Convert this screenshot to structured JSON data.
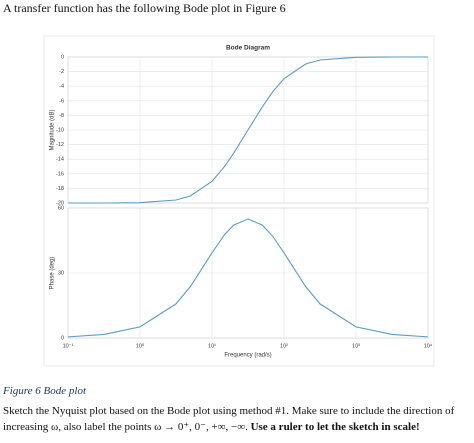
{
  "document": {
    "intro": "A transfer function has the following Bode plot in Figure 6",
    "caption": "Figure 6 Bode plot",
    "instruction": "Sketch the Nyquist plot based on the Bode plot using method #1. Make sure to include the direction of increasing ω, also label the points ω → 0⁺, 0⁻, +∞, −∞.",
    "instruction_bold": "Use a ruler to let the sketch in scale!"
  },
  "chart_data": [
    {
      "type": "line",
      "title": "Bode Diagram",
      "y_label": "Magnitude (dB)",
      "log_x": true,
      "grid": true,
      "x": [
        0.1,
        0.316,
        1,
        3.16,
        5,
        10,
        15,
        20,
        31.6,
        50,
        70,
        100,
        200,
        316,
        1000,
        3162,
        10000
      ],
      "series": [
        {
          "name": "Magnitude",
          "color": "#5b9bbf",
          "values": [
            -20,
            -20,
            -19.96,
            -19.59,
            -19.04,
            -17.03,
            -14.98,
            -13.18,
            -10,
            -6.82,
            -4.74,
            -2.97,
            -0.96,
            -0.41,
            -0.04,
            0,
            0
          ]
        }
      ],
      "xlim": [
        0.1,
        10000
      ],
      "ylim": [
        -20,
        0
      ],
      "yticks": [
        0,
        -2,
        -4,
        -6,
        -8,
        -10,
        -12,
        -14,
        -16,
        -18,
        -20
      ]
    },
    {
      "type": "line",
      "y_label": "Phase (deg)",
      "x_label": "Frequency (rad/s)",
      "log_x": true,
      "grid": true,
      "x": [
        0.1,
        0.316,
        1,
        3.16,
        5,
        10,
        15,
        20,
        31.6,
        50,
        70,
        100,
        200,
        316,
        1000,
        3162,
        10000
      ],
      "series": [
        {
          "name": "Phase",
          "color": "#5b9bbf",
          "values": [
            0.52,
            1.63,
            5.14,
            15.74,
            23.71,
            39.29,
            47.78,
            52.12,
            54.9,
            52.12,
            46.88,
            39.29,
            23.71,
            15.74,
            5.14,
            1.63,
            0.52
          ]
        }
      ],
      "xlim": [
        0.1,
        10000
      ],
      "ylim": [
        0,
        60
      ],
      "yticks": [
        0,
        30,
        60
      ],
      "xticks": [
        {
          "value": 0.1,
          "label": "10⁻¹"
        },
        {
          "value": 1,
          "label": "10⁰"
        },
        {
          "value": 10,
          "label": "10¹"
        },
        {
          "value": 100,
          "label": "10²"
        },
        {
          "value": 1000,
          "label": "10³"
        },
        {
          "value": 10000,
          "label": "10⁴"
        }
      ]
    }
  ]
}
